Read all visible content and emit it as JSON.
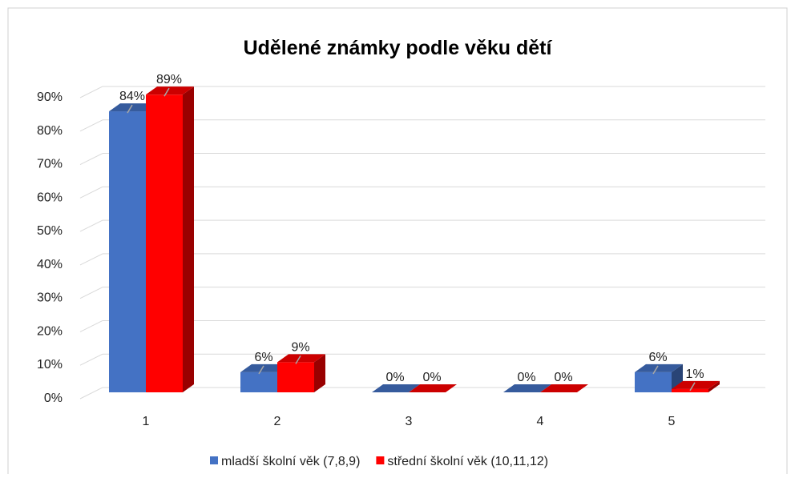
{
  "chart_data": {
    "type": "bar3d",
    "title": "Udělené známky podle věku dětí",
    "categories": [
      "1",
      "2",
      "3",
      "4",
      "5"
    ],
    "series": [
      {
        "name": "mladší školní věk (7,8,9)",
        "color": "#4472c4",
        "values": [
          84,
          6,
          0,
          0,
          6
        ],
        "value_labels": [
          "84%",
          "6%",
          "0%",
          "0%",
          "6%"
        ]
      },
      {
        "name": "střední školní věk (10,11,12)",
        "color": "#ff0000",
        "values": [
          89,
          9,
          0,
          0,
          1
        ],
        "value_labels": [
          "89%",
          "9%",
          "0%",
          "0%",
          "1%"
        ]
      }
    ],
    "ylim": [
      0,
      90
    ],
    "yticks": [
      {
        "value": 0,
        "label": "0%"
      },
      {
        "value": 10,
        "label": "10%"
      },
      {
        "value": 20,
        "label": "20%"
      },
      {
        "value": 30,
        "label": "30%"
      },
      {
        "value": 40,
        "label": "40%"
      },
      {
        "value": 50,
        "label": "50%"
      },
      {
        "value": 60,
        "label": "60%"
      },
      {
        "value": 70,
        "label": "70%"
      },
      {
        "value": 80,
        "label": "80%"
      },
      {
        "value": 90,
        "label": "90%"
      }
    ],
    "grid": true,
    "legend": "bottom"
  }
}
